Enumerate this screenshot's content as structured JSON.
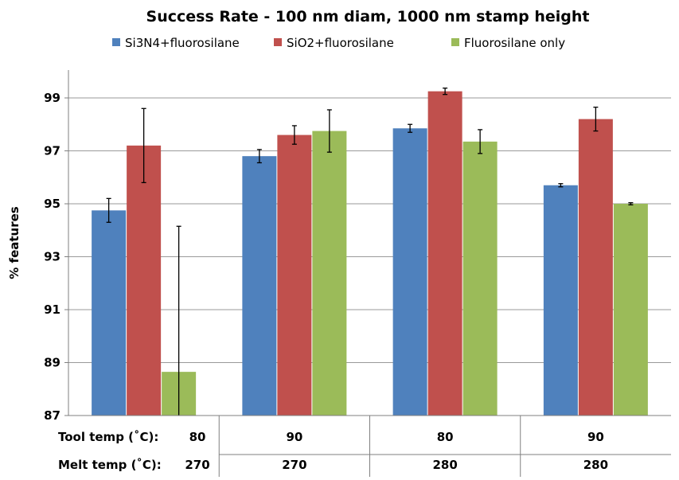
{
  "chart_data": {
    "type": "bar",
    "title": "Success Rate - 100 nm diam, 1000 nm stamp height",
    "ylabel": "% features",
    "xlabel": "",
    "ylim": [
      87,
      101
    ],
    "yticks": [
      87,
      89,
      91,
      93,
      95,
      97,
      99
    ],
    "grid": true,
    "legend_position": "top",
    "category_rows": [
      {
        "label": "Tool temp (˚C):",
        "values": [
          "80",
          "90",
          "80",
          "90"
        ]
      },
      {
        "label": "Melt temp (˚C):",
        "values": [
          "270",
          "270",
          "280",
          "280"
        ]
      }
    ],
    "series": [
      {
        "name": "Si3N4+fluorosilane",
        "color": "#4F81BD",
        "values": [
          94.75,
          96.8,
          97.85,
          95.7
        ],
        "errors": [
          0.45,
          0.25,
          0.15,
          0.06
        ]
      },
      {
        "name": "SiO2+fluorosilane",
        "color": "#C0504D",
        "values": [
          97.2,
          97.6,
          99.25,
          98.2
        ],
        "errors": [
          1.4,
          0.35,
          0.12,
          0.45
        ]
      },
      {
        "name": "Fluorosilane only",
        "color": "#9BBB59",
        "values": [
          88.65,
          97.75,
          97.35,
          95.0
        ],
        "errors": [
          5.5,
          0.8,
          0.45,
          0.04
        ]
      }
    ]
  }
}
